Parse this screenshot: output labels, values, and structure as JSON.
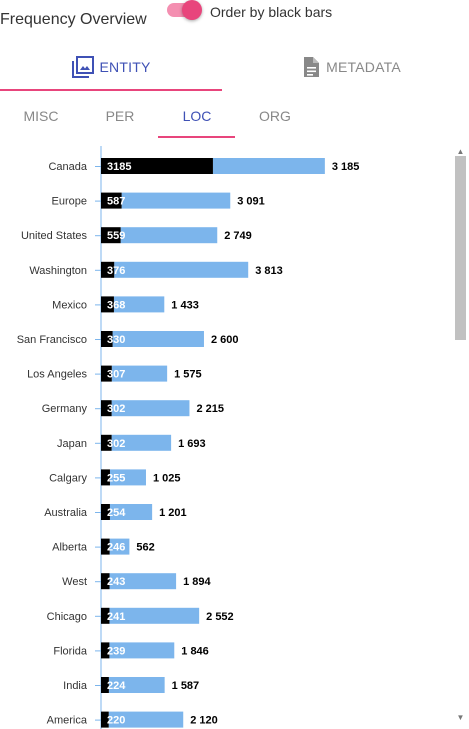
{
  "header": {
    "title": "Frequency Overview",
    "toggle_label": "Order by black bars",
    "toggle_on": true
  },
  "main_tabs": [
    {
      "label": "ENTITY",
      "icon": "image-gallery-icon",
      "active": true
    },
    {
      "label": "METADATA",
      "icon": "document-icon",
      "active": false
    }
  ],
  "sub_tabs": [
    {
      "label": "MISC",
      "active": false
    },
    {
      "label": "PER",
      "active": false
    },
    {
      "label": "LOC",
      "active": true
    },
    {
      "label": "ORG",
      "active": false
    }
  ],
  "colors": {
    "accent": "#e8457c",
    "active_tab": "#3f51b5",
    "black_bar": "#000000",
    "blue_bar": "#7cb5ec"
  },
  "chart_data": {
    "type": "bar",
    "orientation": "horizontal",
    "categories": [
      "Canada",
      "Europe",
      "United States",
      "Washington",
      "Mexico",
      "San Francisco",
      "Los Angeles",
      "Germany",
      "Japan",
      "Calgary",
      "Australia",
      "Alberta",
      "West",
      "Chicago",
      "Florida",
      "India",
      "America"
    ],
    "series": [
      {
        "color": "#000000",
        "values": [
          3185,
          587,
          559,
          376,
          368,
          330,
          307,
          302,
          302,
          255,
          254,
          246,
          243,
          241,
          239,
          224,
          220
        ]
      },
      {
        "color": "#7cb5ec",
        "values": [
          3185,
          3091,
          2749,
          3813,
          1433,
          2600,
          1575,
          2215,
          1693,
          1025,
          1201,
          562,
          1894,
          2552,
          1846,
          1587,
          2120
        ]
      }
    ],
    "black_labels": [
      "3185",
      "587",
      "559",
      "376",
      "368",
      "330",
      "307",
      "302",
      "302",
      "255",
      "254",
      "246",
      "243",
      "241",
      "239",
      "224",
      "220"
    ],
    "total_labels": [
      "3 185",
      "3 091",
      "2 749",
      "3 813",
      "1 433",
      "2 600",
      "1 575",
      "2 215",
      "1 693",
      "1 025",
      "1 201",
      "562",
      "1 894",
      "2 552",
      "1 846",
      "1 587",
      "2 120"
    ],
    "grid": false,
    "legend": "none"
  }
}
